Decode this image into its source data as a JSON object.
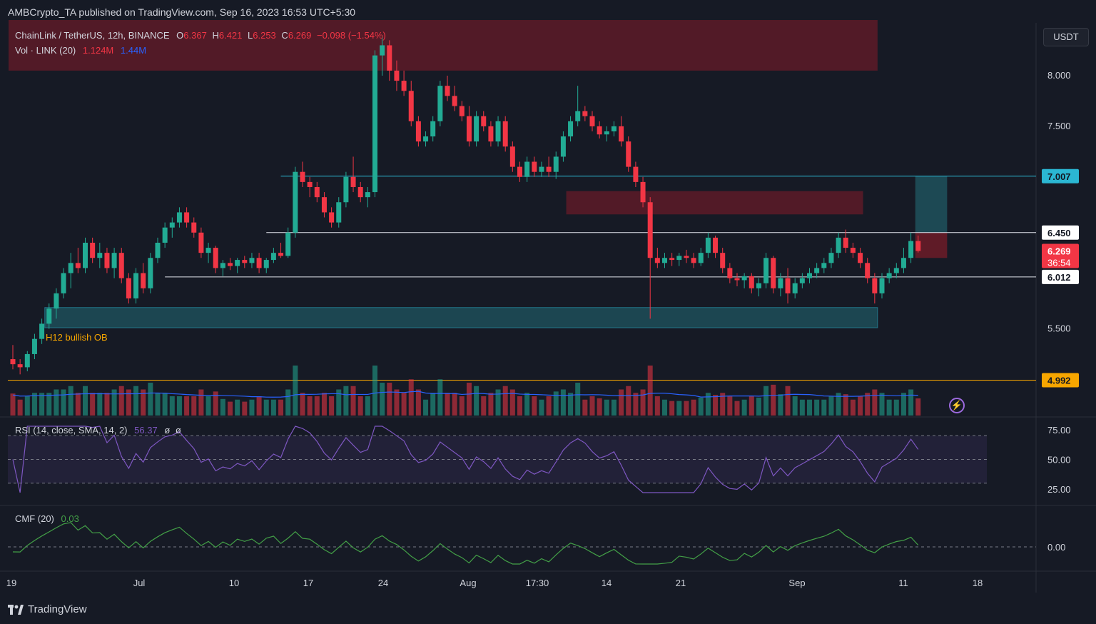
{
  "header": {
    "publisher_line": "AMBCrypto_TA published on TradingView.com, Sep 16, 2023 16:53 UTC+5:30"
  },
  "footer": {
    "brand": "TradingView"
  },
  "colors": {
    "up": "#22ab94",
    "down": "#f23645",
    "rsi": "#7e57c2",
    "cmf": "#43a047",
    "vol_ma": "#2962ff",
    "teal_zone": "#1f5560",
    "red_zone": "#5c1f2a",
    "support": "#f7a600",
    "level_cyan": "#2bb7d3"
  },
  "legend": {
    "symbol": "ChainLink / TetherUS, 12h, BINANCE",
    "o_label": "O",
    "o": "6.367",
    "h_label": "H",
    "h": "6.421",
    "l_label": "L",
    "l": "6.253",
    "c_label": "C",
    "c": "6.269",
    "change": "−0.098 (−1.54%)",
    "vol_label": "Vol · LINK (20)",
    "vol_1": "1.124M",
    "vol_2": "1.44M"
  },
  "rsi_legend": {
    "label": "RSI (14, close, SMA, 14, 2)",
    "value": "56.37",
    "extra1": "ø",
    "extra2": "ø"
  },
  "cmf_legend": {
    "label": "CMF (20)",
    "value": "0.03"
  },
  "currency_button": "USDT",
  "annotations": {
    "ob_label": "H12 bullish OB",
    "countdown": "36:54"
  },
  "chart_data": {
    "type": "candlestick",
    "title": "ChainLink / TetherUS, 12h, BINANCE",
    "price_ticks": [
      "8.000",
      "7.500",
      "5.500"
    ],
    "price_markers": [
      {
        "value": "7.007",
        "style": "cyan"
      },
      {
        "value": "6.450",
        "style": "white"
      },
      {
        "value": "6.269",
        "style": "red"
      },
      {
        "value": "6.012",
        "style": "white"
      },
      {
        "value": "4.992",
        "style": "orange"
      }
    ],
    "rsi_ticks": [
      "75.00",
      "50.00",
      "25.00"
    ],
    "cmf_ticks": [
      "0.00"
    ],
    "x_ticks": [
      "19",
      "Jul",
      "10",
      "17",
      "24",
      "Aug",
      "17:30",
      "14",
      "21",
      "Sep",
      "11",
      "18"
    ],
    "zones": [
      {
        "name": "supply-top",
        "y1": 8.55,
        "y2": 8.05,
        "from": 0,
        "to": 119,
        "color": "red"
      },
      {
        "name": "supply-mid",
        "y1": 6.86,
        "y2": 6.63,
        "from": 77,
        "to": 117,
        "color": "red"
      },
      {
        "name": "bullish-ob",
        "y1": 5.71,
        "y2": 5.51,
        "from": 5,
        "to": 119,
        "color": "teal"
      }
    ],
    "levels": [
      {
        "value": 7.007,
        "from": 37,
        "to": 125,
        "color": "cyan"
      },
      {
        "value": 6.45,
        "from": 35,
        "to": 125,
        "color": "white"
      },
      {
        "value": 6.012,
        "from": 21,
        "to": 125,
        "color": "white"
      },
      {
        "value": 4.992,
        "from": 0,
        "to": 125,
        "color": "orange"
      }
    ],
    "candles": [
      [
        5.2,
        5.34,
        5.1,
        5.15
      ],
      [
        5.15,
        5.2,
        5.05,
        5.12
      ],
      [
        5.12,
        5.28,
        5.08,
        5.25
      ],
      [
        5.25,
        5.45,
        5.2,
        5.4
      ],
      [
        5.4,
        5.6,
        5.35,
        5.55
      ],
      [
        5.55,
        5.75,
        5.5,
        5.7
      ],
      [
        5.7,
        5.9,
        5.6,
        5.85
      ],
      [
        5.85,
        6.1,
        5.8,
        6.05
      ],
      [
        6.05,
        6.25,
        5.9,
        6.15
      ],
      [
        6.15,
        6.3,
        6.05,
        6.1
      ],
      [
        6.1,
        6.4,
        6.05,
        6.35
      ],
      [
        6.35,
        6.4,
        6.15,
        6.2
      ],
      [
        6.2,
        6.35,
        6.1,
        6.25
      ],
      [
        6.25,
        6.3,
        6.05,
        6.1
      ],
      [
        6.1,
        6.3,
        6.0,
        6.25
      ],
      [
        6.25,
        6.3,
        5.95,
        6.0
      ],
      [
        6.0,
        6.05,
        5.75,
        5.8
      ],
      [
        5.8,
        6.1,
        5.75,
        6.05
      ],
      [
        6.05,
        6.15,
        5.85,
        5.9
      ],
      [
        5.9,
        6.25,
        5.85,
        6.2
      ],
      [
        6.2,
        6.4,
        6.15,
        6.35
      ],
      [
        6.35,
        6.55,
        6.3,
        6.5
      ],
      [
        6.5,
        6.6,
        6.4,
        6.55
      ],
      [
        6.55,
        6.7,
        6.5,
        6.65
      ],
      [
        6.65,
        6.7,
        6.5,
        6.55
      ],
      [
        6.55,
        6.6,
        6.4,
        6.45
      ],
      [
        6.45,
        6.5,
        6.2,
        6.25
      ],
      [
        6.25,
        6.35,
        6.15,
        6.3
      ],
      [
        6.3,
        6.32,
        6.05,
        6.1
      ],
      [
        6.1,
        6.18,
        6.02,
        6.15
      ],
      [
        6.15,
        6.2,
        6.08,
        6.12
      ],
      [
        6.12,
        6.2,
        6.05,
        6.18
      ],
      [
        6.18,
        6.22,
        6.1,
        6.15
      ],
      [
        6.15,
        6.25,
        6.1,
        6.2
      ],
      [
        6.2,
        6.25,
        6.05,
        6.1
      ],
      [
        6.1,
        6.2,
        6.05,
        6.18
      ],
      [
        6.18,
        6.3,
        6.15,
        6.25
      ],
      [
        6.25,
        6.35,
        6.2,
        6.22
      ],
      [
        6.22,
        6.5,
        6.2,
        6.45
      ],
      [
        6.45,
        7.1,
        6.4,
        7.05
      ],
      [
        7.05,
        7.15,
        6.9,
        6.95
      ],
      [
        6.95,
        7.0,
        6.8,
        6.9
      ],
      [
        6.9,
        6.95,
        6.75,
        6.8
      ],
      [
        6.8,
        6.85,
        6.6,
        6.65
      ],
      [
        6.65,
        6.7,
        6.5,
        6.55
      ],
      [
        6.55,
        6.8,
        6.5,
        6.75
      ],
      [
        6.75,
        7.05,
        6.7,
        7.0
      ],
      [
        7.0,
        7.2,
        6.85,
        6.9
      ],
      [
        6.9,
        6.95,
        6.75,
        6.8
      ],
      [
        6.8,
        6.9,
        6.7,
        6.85
      ],
      [
        6.85,
        8.25,
        6.8,
        8.2
      ],
      [
        8.2,
        8.4,
        8.0,
        8.3
      ],
      [
        8.3,
        8.35,
        7.95,
        8.05
      ],
      [
        8.05,
        8.15,
        7.85,
        7.95
      ],
      [
        7.95,
        8.05,
        7.8,
        7.85
      ],
      [
        7.85,
        7.95,
        7.5,
        7.55
      ],
      [
        7.55,
        7.6,
        7.3,
        7.35
      ],
      [
        7.35,
        7.45,
        7.3,
        7.4
      ],
      [
        7.4,
        7.6,
        7.35,
        7.55
      ],
      [
        7.55,
        7.95,
        7.5,
        7.9
      ],
      [
        7.9,
        8.0,
        7.75,
        7.8
      ],
      [
        7.8,
        7.9,
        7.65,
        7.7
      ],
      [
        7.7,
        7.75,
        7.55,
        7.6
      ],
      [
        7.6,
        7.7,
        7.3,
        7.35
      ],
      [
        7.35,
        7.65,
        7.3,
        7.6
      ],
      [
        7.6,
        7.65,
        7.45,
        7.5
      ],
      [
        7.5,
        7.55,
        7.3,
        7.35
      ],
      [
        7.35,
        7.6,
        7.3,
        7.55
      ],
      [
        7.55,
        7.6,
        7.25,
        7.3
      ],
      [
        7.3,
        7.35,
        7.05,
        7.1
      ],
      [
        7.1,
        7.15,
        6.95,
        7.0
      ],
      [
        7.0,
        7.2,
        6.95,
        7.15
      ],
      [
        7.15,
        7.2,
        7.0,
        7.05
      ],
      [
        7.05,
        7.15,
        7.0,
        7.1
      ],
      [
        7.1,
        7.2,
        7.0,
        7.05
      ],
      [
        7.05,
        7.25,
        6.98,
        7.2
      ],
      [
        7.2,
        7.45,
        7.15,
        7.4
      ],
      [
        7.4,
        7.6,
        7.35,
        7.55
      ],
      [
        7.55,
        7.9,
        7.5,
        7.65
      ],
      [
        7.65,
        7.7,
        7.55,
        7.6
      ],
      [
        7.6,
        7.65,
        7.45,
        7.5
      ],
      [
        7.5,
        7.55,
        7.38,
        7.42
      ],
      [
        7.42,
        7.5,
        7.35,
        7.45
      ],
      [
        7.45,
        7.55,
        7.4,
        7.5
      ],
      [
        7.5,
        7.6,
        7.3,
        7.35
      ],
      [
        7.35,
        7.4,
        7.05,
        7.1
      ],
      [
        7.1,
        7.15,
        6.9,
        6.95
      ],
      [
        6.95,
        7.0,
        6.7,
        6.75
      ],
      [
        6.75,
        6.8,
        5.6,
        6.2
      ],
      [
        6.2,
        6.3,
        6.1,
        6.15
      ],
      [
        6.15,
        6.25,
        6.1,
        6.2
      ],
      [
        6.2,
        6.25,
        6.12,
        6.18
      ],
      [
        6.18,
        6.25,
        6.12,
        6.22
      ],
      [
        6.22,
        6.28,
        6.15,
        6.2
      ],
      [
        6.2,
        6.25,
        6.1,
        6.15
      ],
      [
        6.15,
        6.3,
        6.12,
        6.25
      ],
      [
        6.25,
        6.45,
        6.2,
        6.4
      ],
      [
        6.4,
        6.42,
        6.2,
        6.25
      ],
      [
        6.25,
        6.3,
        6.05,
        6.1
      ],
      [
        6.1,
        6.15,
        5.95,
        6.0
      ],
      [
        6.0,
        6.05,
        5.92,
        5.98
      ],
      [
        5.98,
        6.05,
        5.9,
        6.02
      ],
      [
        6.02,
        6.05,
        5.85,
        5.9
      ],
      [
        5.9,
        6.0,
        5.82,
        5.95
      ],
      [
        5.95,
        6.25,
        5.9,
        6.2
      ],
      [
        6.2,
        6.22,
        5.85,
        5.9
      ],
      [
        5.9,
        6.05,
        5.82,
        6.0
      ],
      [
        6.0,
        6.1,
        5.75,
        5.85
      ],
      [
        5.85,
        6.0,
        5.8,
        5.95
      ],
      [
        5.95,
        6.05,
        5.9,
        6.0
      ],
      [
        6.0,
        6.1,
        5.95,
        6.05
      ],
      [
        6.05,
        6.15,
        6.0,
        6.1
      ],
      [
        6.1,
        6.2,
        6.05,
        6.15
      ],
      [
        6.15,
        6.3,
        6.1,
        6.25
      ],
      [
        6.25,
        6.45,
        6.2,
        6.4
      ],
      [
        6.4,
        6.48,
        6.25,
        6.3
      ],
      [
        6.3,
        6.35,
        6.2,
        6.25
      ],
      [
        6.25,
        6.3,
        6.1,
        6.15
      ],
      [
        6.15,
        6.2,
        5.95,
        6.0
      ],
      [
        6.0,
        6.05,
        5.75,
        5.85
      ],
      [
        5.85,
        6.05,
        5.8,
        6.0
      ],
      [
        6.0,
        6.1,
        5.95,
        6.05
      ],
      [
        6.05,
        6.15,
        6.0,
        6.1
      ],
      [
        6.1,
        6.3,
        6.05,
        6.2
      ],
      [
        6.2,
        6.45,
        6.15,
        6.367
      ],
      [
        6.367,
        6.421,
        6.253,
        6.269
      ]
    ]
  }
}
